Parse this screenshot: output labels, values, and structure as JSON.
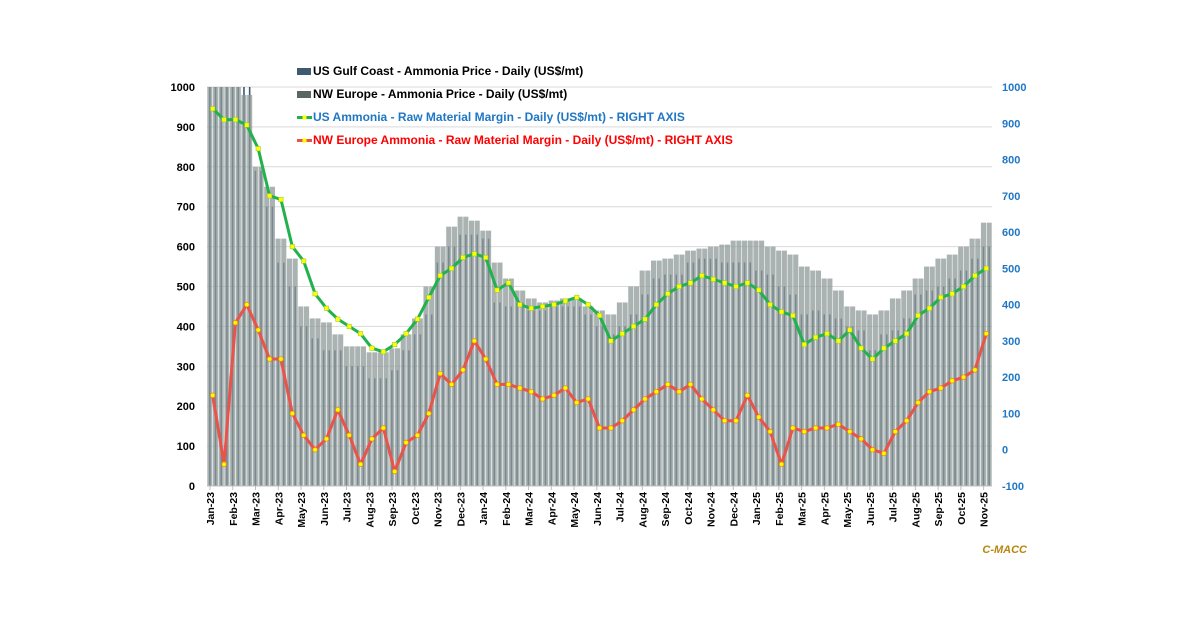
{
  "chart_data": {
    "type": "bar+line",
    "title": "",
    "source_label": "C-MACC",
    "x_tick_labels": [
      "Jan-23",
      "Feb-23",
      "Mar-23",
      "Apr-23",
      "May-23",
      "Jun-23",
      "Jul-23",
      "Aug-23",
      "Sep-23",
      "Oct-23",
      "Nov-23",
      "Dec-23",
      "Jan-24",
      "Feb-24",
      "Mar-24",
      "Apr-24",
      "May-24",
      "Jun-24",
      "Jul-24",
      "Aug-24",
      "Sep-24",
      "Oct-24",
      "Nov-24",
      "Dec-24",
      "Jan-25",
      "Feb-25",
      "Mar-25",
      "Apr-25",
      "May-25",
      "Jun-25",
      "Jul-25",
      "Aug-25",
      "Sep-25",
      "Oct-25",
      "Nov-25"
    ],
    "left_axis": {
      "label": "",
      "ylim": [
        0,
        1000
      ],
      "ticks": [
        0,
        100,
        200,
        300,
        400,
        500,
        600,
        700,
        800,
        900,
        1000
      ],
      "color": "#000000"
    },
    "right_axis": {
      "label": "",
      "ylim": [
        -100,
        1000
      ],
      "ticks": [
        -100,
        0,
        100,
        200,
        300,
        400,
        500,
        600,
        700,
        800,
        900,
        1000
      ],
      "color": "#1f77c4"
    },
    "grid": true,
    "legend_position": "top-center",
    "x_resolution": "semi-monthly (two points per month, Jan-23 to Nov-25)",
    "series": [
      {
        "name": "US Gulf Coast - Ammonia Price - Daily (US$/mt)",
        "type": "bar",
        "axis": "left",
        "color": "#3d5a73",
        "legend_color": "#3d5a73",
        "values": [
          1000,
          1000,
          1000,
          1000,
          790,
          700,
          560,
          500,
          400,
          370,
          340,
          340,
          300,
          300,
          270,
          270,
          290,
          340,
          380,
          430,
          560,
          600,
          630,
          630,
          620,
          460,
          450,
          460,
          440,
          440,
          450,
          450,
          450,
          430,
          400,
          380,
          400,
          430,
          480,
          520,
          530,
          530,
          560,
          570,
          570,
          560,
          560,
          560,
          540,
          530,
          500,
          480,
          430,
          440,
          430,
          420,
          400,
          390,
          340,
          380,
          390,
          420,
          480,
          490,
          500,
          520,
          540,
          570,
          600
        ]
      },
      {
        "name": "NW Europe - Ammonia Price - Daily (US$/mt)",
        "type": "bar",
        "axis": "left",
        "color": "#8e9a98",
        "legend_color": "#5a6660",
        "values": [
          1000,
          1000,
          1000,
          980,
          800,
          750,
          620,
          570,
          450,
          420,
          410,
          380,
          350,
          350,
          335,
          335,
          345,
          380,
          420,
          500,
          600,
          650,
          675,
          665,
          640,
          560,
          520,
          490,
          470,
          460,
          465,
          470,
          470,
          450,
          440,
          430,
          460,
          500,
          540,
          565,
          570,
          580,
          590,
          595,
          600,
          605,
          615,
          615,
          615,
          600,
          590,
          580,
          550,
          540,
          520,
          490,
          450,
          440,
          430,
          440,
          470,
          490,
          520,
          550,
          570,
          580,
          600,
          620,
          660
        ]
      },
      {
        "name": "US Ammonia - Raw Material Margin - Daily (US$/mt) - RIGHT AXIS",
        "type": "line",
        "axis": "right",
        "color": "#22b14c",
        "marker_color": "#ffff00",
        "legend_text_color": "#1f77c4",
        "values": [
          940,
          910,
          910,
          895,
          830,
          700,
          690,
          560,
          520,
          430,
          390,
          360,
          340,
          320,
          280,
          270,
          290,
          320,
          360,
          420,
          480,
          500,
          530,
          540,
          530,
          440,
          460,
          400,
          390,
          395,
          400,
          410,
          420,
          400,
          370,
          300,
          320,
          340,
          360,
          400,
          430,
          450,
          460,
          480,
          470,
          460,
          450,
          460,
          440,
          400,
          380,
          370,
          290,
          310,
          320,
          300,
          330,
          280,
          250,
          280,
          300,
          320,
          370,
          390,
          420,
          430,
          450,
          480,
          500
        ]
      },
      {
        "name": "NW Europe Ammonia - Raw Material Margin - Daily (US$/mt) - RIGHT AXIS",
        "type": "line",
        "axis": "right",
        "color": "#e8534a",
        "marker_color": "#ffff00",
        "legend_text_color": "#ff0000",
        "values": [
          150,
          -40,
          350,
          400,
          330,
          250,
          250,
          100,
          40,
          0,
          30,
          110,
          40,
          -40,
          30,
          60,
          -60,
          20,
          40,
          100,
          210,
          180,
          220,
          300,
          250,
          180,
          180,
          170,
          160,
          140,
          150,
          170,
          130,
          140,
          60,
          60,
          80,
          110,
          140,
          160,
          180,
          160,
          180,
          140,
          110,
          80,
          80,
          150,
          90,
          50,
          -40,
          60,
          50,
          60,
          60,
          70,
          50,
          30,
          0,
          -10,
          50,
          80,
          130,
          160,
          170,
          190,
          200,
          220,
          320
        ]
      }
    ]
  }
}
